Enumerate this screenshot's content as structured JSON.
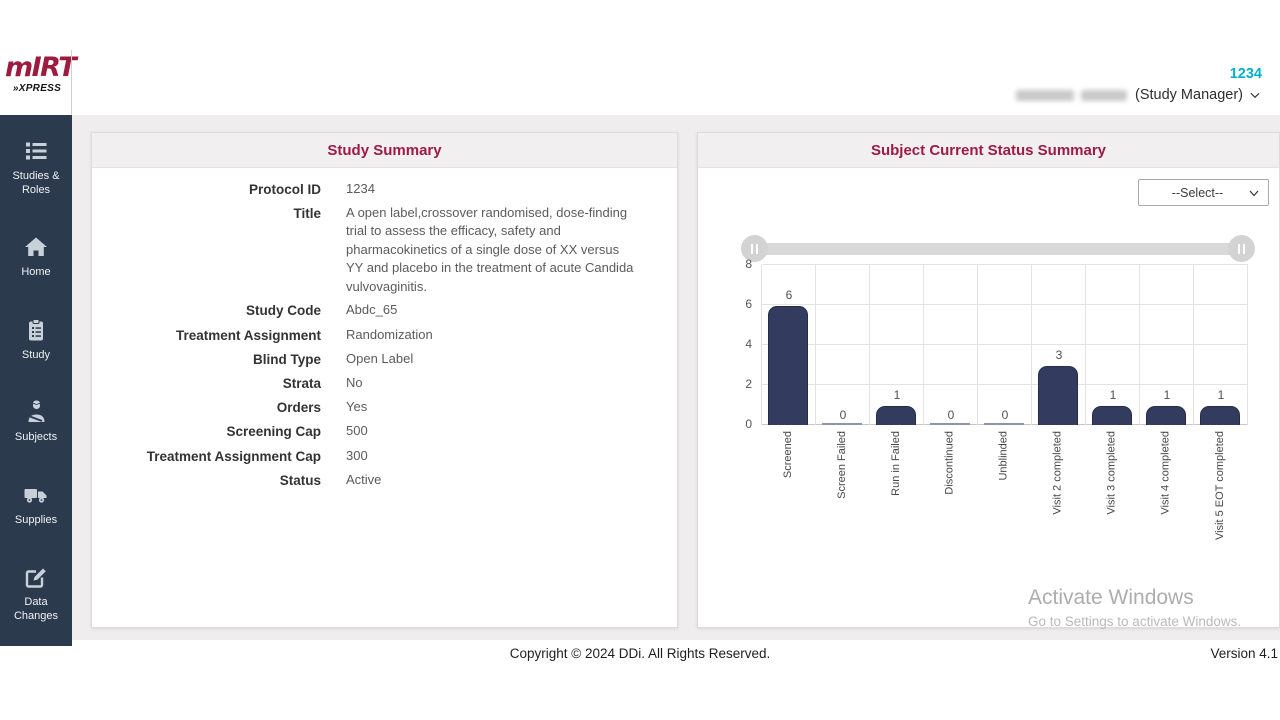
{
  "header": {
    "logo": {
      "text_main": "mIRT",
      "text_sub": "»XPRESS"
    },
    "protocol_badge": "1234",
    "user": {
      "role_label": "(Study Manager)"
    }
  },
  "sidebar": {
    "items": [
      {
        "label": "Studies & Roles",
        "icon": "list-icon"
      },
      {
        "label": "Home",
        "icon": "home-icon"
      },
      {
        "label": "Study",
        "icon": "clipboard-icon"
      },
      {
        "label": "Subjects",
        "icon": "patient-icon"
      },
      {
        "label": "Supplies",
        "icon": "truck-icon"
      },
      {
        "label": "Data Changes",
        "icon": "edit-icon"
      }
    ]
  },
  "study_summary": {
    "title": "Study Summary",
    "fields": [
      {
        "label": "Protocol ID",
        "value": "1234"
      },
      {
        "label": "Title",
        "value": "A open label,crossover randomised, dose-finding trial to assess the efficacy, safety and pharmacokinetics of a single dose of XX versus YY and placebo in the treatment of acute Candida vulvovaginitis."
      },
      {
        "label": "Study Code",
        "value": "Abdc_65"
      },
      {
        "label": "Treatment Assignment",
        "value": "Randomization"
      },
      {
        "label": "Blind Type",
        "value": "Open Label"
      },
      {
        "label": "Strata",
        "value": "No"
      },
      {
        "label": "Orders",
        "value": "Yes"
      },
      {
        "label": "Screening Cap",
        "value": "500"
      },
      {
        "label": "Treatment Assignment Cap",
        "value": "300"
      },
      {
        "label": "Status",
        "value": "Active"
      }
    ]
  },
  "status_panel": {
    "title": "Subject Current Status Summary",
    "filter_value": "--Select--"
  },
  "chart_data": {
    "type": "bar",
    "categories": [
      "Screened",
      "Screen Failed",
      "Run in Failed",
      "Discontinued",
      "Unblinded",
      "Visit 2 completed",
      "Visit 3 completed",
      "Visit 4 completed",
      "Visit 5 EOT completed"
    ],
    "values": [
      6,
      0,
      1,
      0,
      0,
      3,
      1,
      1,
      1
    ],
    "title": "Subject Current Status Summary",
    "xlabel": "",
    "ylabel": "",
    "ylim": [
      0,
      8
    ],
    "yticks": [
      0,
      2,
      4,
      6,
      8
    ],
    "grid": true,
    "legend": false,
    "bar_color": "#333c5e"
  },
  "watermark": {
    "line1": "Activate Windows",
    "line2": "Go to Settings to activate Windows."
  },
  "footer": {
    "copyright": "Copyright © 2024 DDi. All Rights Reserved.",
    "version": "Version 4.1"
  },
  "colors": {
    "accent_maroon": "#9d1c45",
    "accent_cyan": "#00b0cb",
    "sidebar_bg": "#2b3a4d",
    "bar_fill": "#333c5e",
    "content_bg": "#efedee"
  }
}
